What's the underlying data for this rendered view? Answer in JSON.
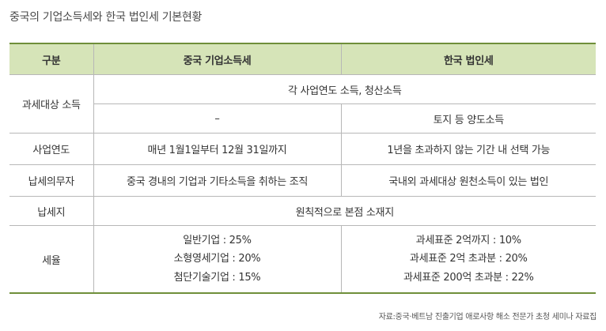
{
  "title": "중국의 기업소득세와 한국 법인세 기본현황",
  "table": {
    "headers": [
      "구분",
      "중국 기업소득세",
      "한국 법인세"
    ],
    "taxable_income": {
      "label": "과세대상 소득",
      "common": "각 사업연도 소득, 청산소득",
      "china": "–",
      "korea": "토지 등 양도소득"
    },
    "fiscal_year": {
      "label": "사업연도",
      "china": "매년 1월1일부터 12월 31일까지",
      "korea": "1년을 초과하지 않는 기간 내 선택 가능"
    },
    "taxpayer": {
      "label": "납세의무자",
      "china": "중국 경내의 기업과 기타소득을 취하는 조직",
      "korea": "국내외 과세대상 원천소득이 있는 법인"
    },
    "tax_location": {
      "label": "납세지",
      "common": "원칙적으로 본점 소재지"
    },
    "tax_rate": {
      "label": "세율",
      "china": [
        "일반기업 : 25%",
        "소형영세기업 : 20%",
        "첨단기술기업 : 15%"
      ],
      "korea": [
        "과세표준 2억까지 : 10%",
        "과세표준 2억 초과분 : 20%",
        "과세표준 200억 초과분 : 22%"
      ]
    }
  },
  "source": "자료:중국·베트남 진출기업 애로사항 해소 전문가 초청 세미나 자료집"
}
